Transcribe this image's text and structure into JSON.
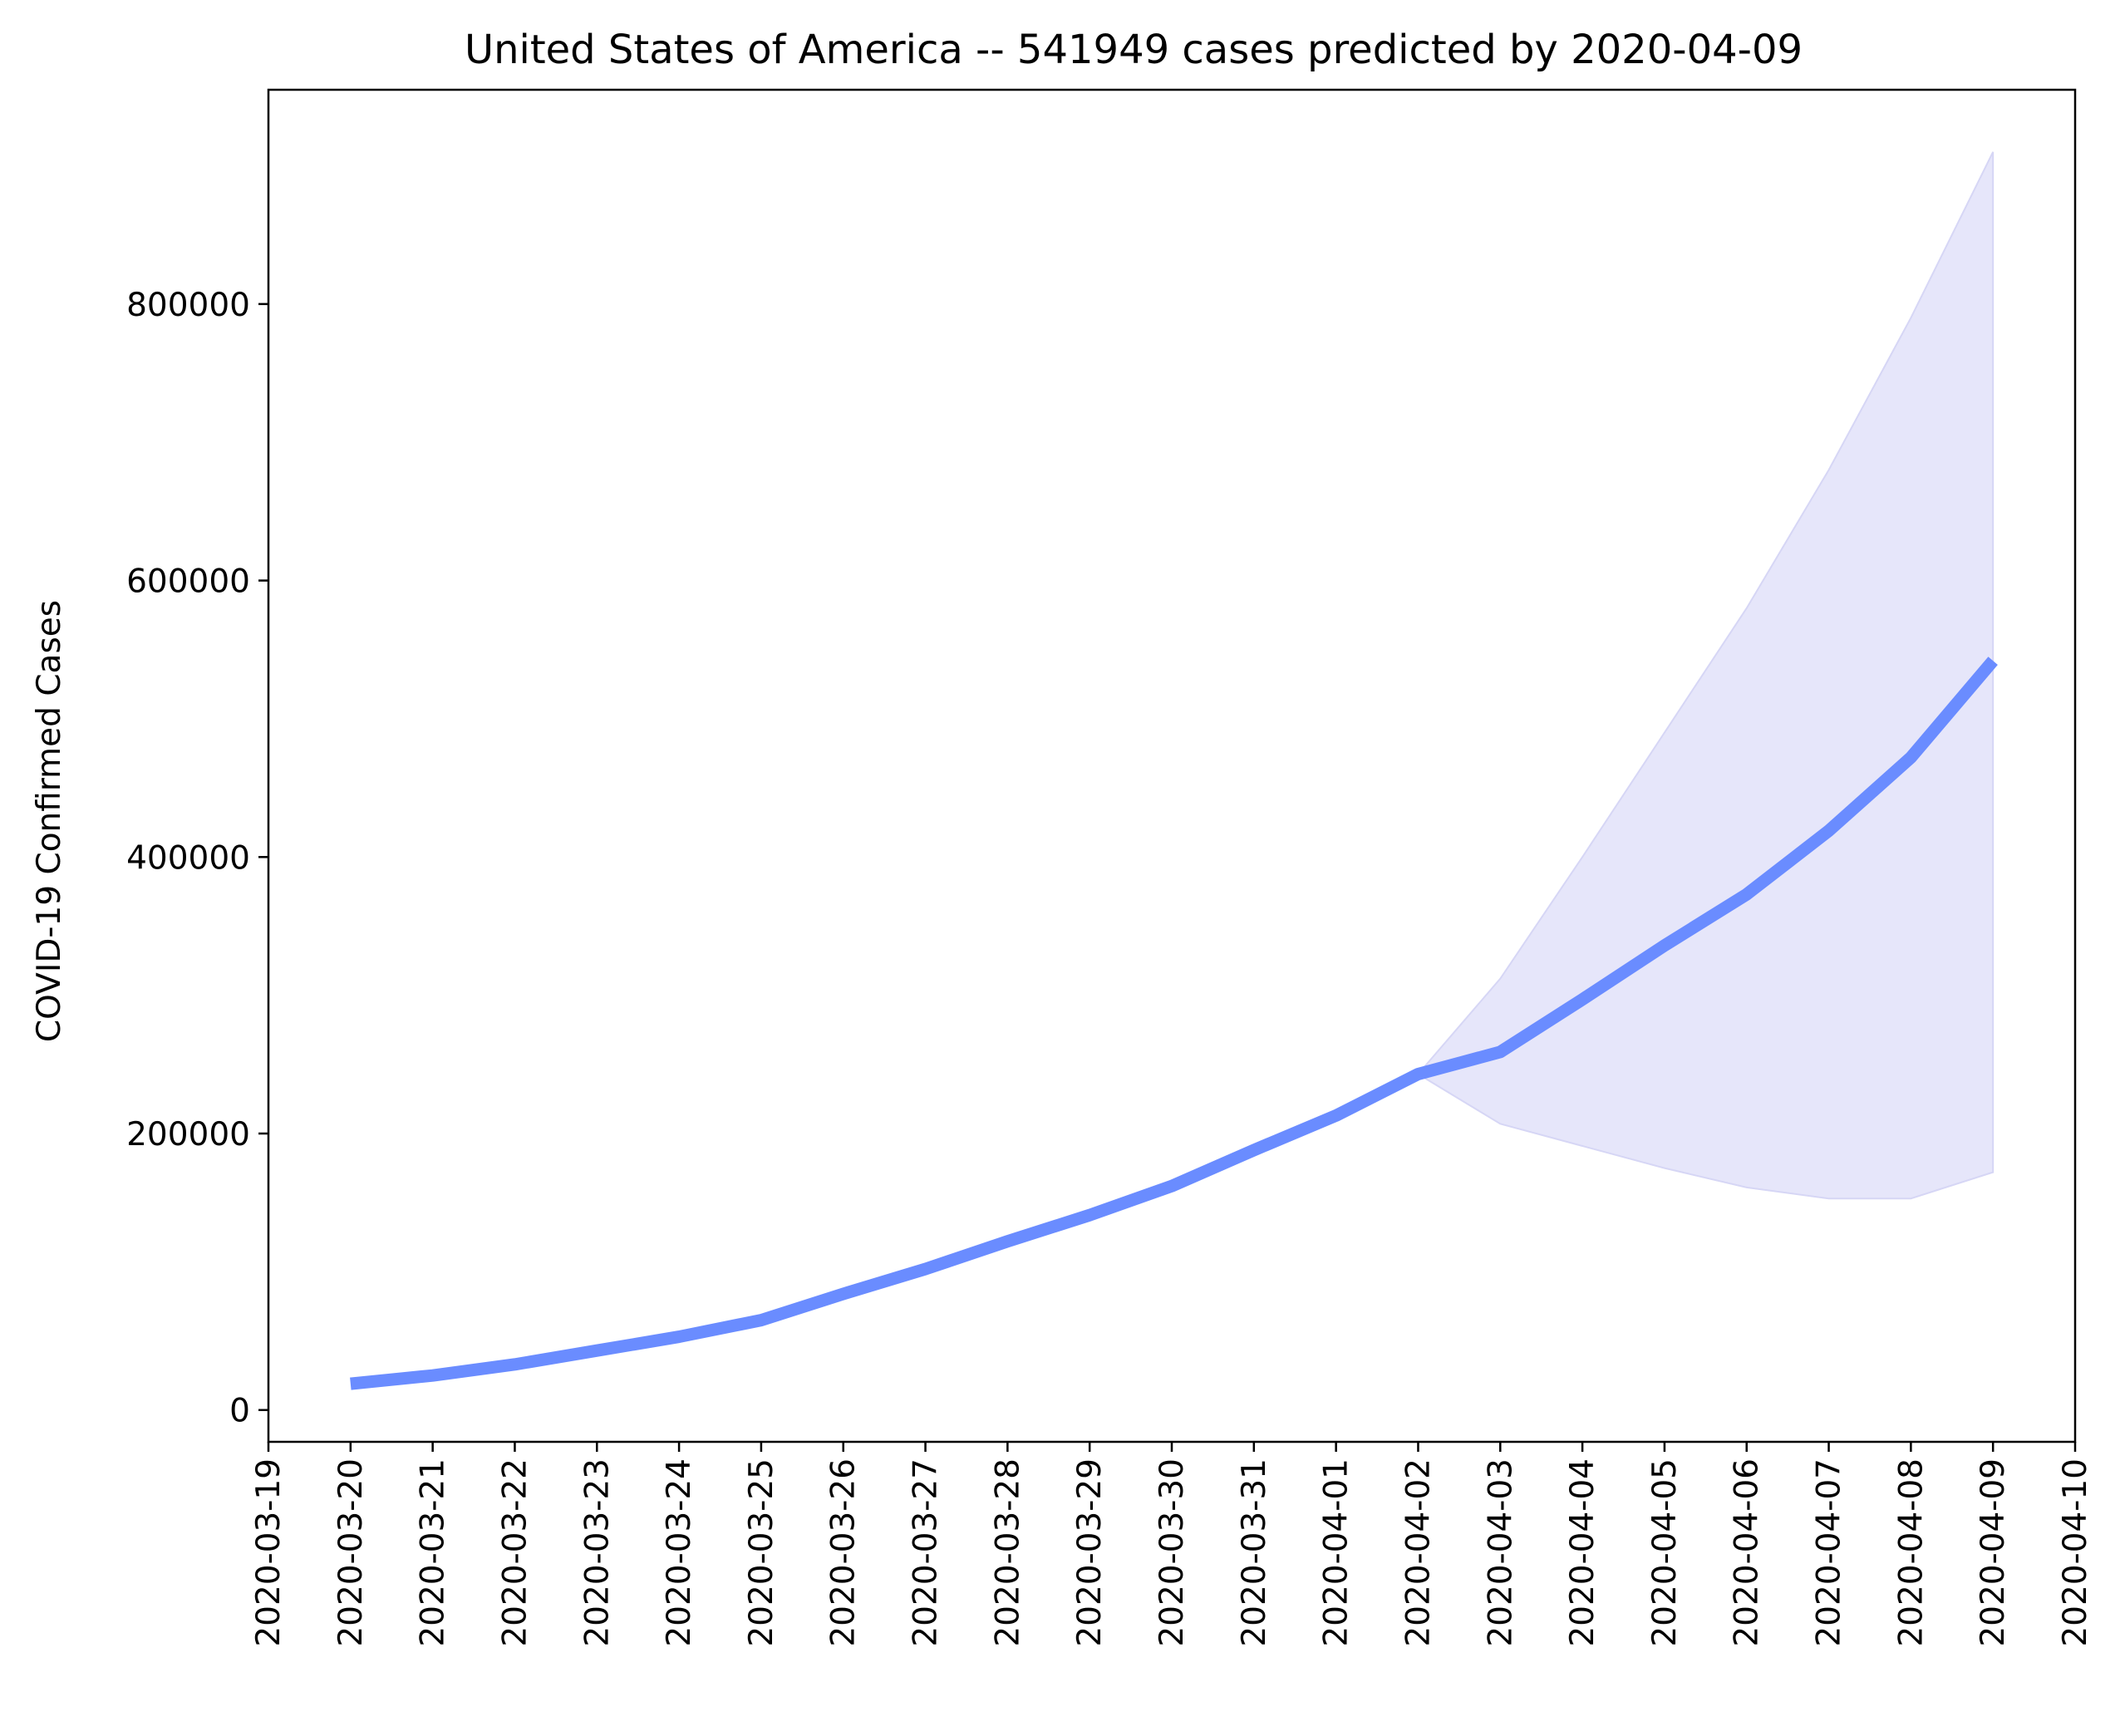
{
  "chart_data": {
    "type": "line",
    "title": "United States of America  --  541949 cases predicted by 2020-04-09",
    "xlabel": "",
    "ylabel": "COVID-19 Confirmed Cases",
    "x_ticks": [
      "2020-03-19",
      "2020-03-20",
      "2020-03-21",
      "2020-03-22",
      "2020-03-23",
      "2020-03-24",
      "2020-03-25",
      "2020-03-26",
      "2020-03-27",
      "2020-03-28",
      "2020-03-29",
      "2020-03-30",
      "2020-03-31",
      "2020-04-01",
      "2020-04-02",
      "2020-04-03",
      "2020-04-04",
      "2020-04-05",
      "2020-04-06",
      "2020-04-07",
      "2020-04-08",
      "2020-04-09",
      "2020-04-10"
    ],
    "y_ticks": [
      0,
      200000,
      400000,
      600000,
      800000
    ],
    "ylim": [
      -23000,
      955000
    ],
    "xlim": [
      "2020-03-19",
      "2020-04-10"
    ],
    "grid": false,
    "series": [
      {
        "color": "#6a8cff",
        "x": [
          "2020-03-20",
          "2020-03-21",
          "2020-03-22",
          "2020-03-23",
          "2020-03-24",
          "2020-03-25",
          "2020-03-26",
          "2020-03-27",
          "2020-03-28",
          "2020-03-29",
          "2020-03-30",
          "2020-03-31",
          "2020-04-01",
          "2020-04-02",
          "2020-04-03",
          "2020-04-04",
          "2020-04-05",
          "2020-04-06",
          "2020-04-07",
          "2020-04-08",
          "2020-04-09"
        ],
        "y": [
          19000,
          25000,
          33000,
          43000,
          53000,
          65000,
          84000,
          102000,
          122000,
          141000,
          162000,
          188000,
          213000,
          243000,
          259000,
          297000,
          336000,
          373000,
          419000,
          472000,
          541949
        ]
      }
    ],
    "confidence_band": {
      "color": "#e6e6fa",
      "edge_color": "#d6d6f5",
      "x": [
        "2020-04-02",
        "2020-04-03",
        "2020-04-04",
        "2020-04-05",
        "2020-04-06",
        "2020-04-07",
        "2020-04-08",
        "2020-04-09"
      ],
      "upper": [
        243000,
        312000,
        400000,
        490000,
        580000,
        680000,
        790000,
        910000
      ],
      "lower": [
        243000,
        207000,
        191000,
        175000,
        161000,
        153000,
        153000,
        172000
      ]
    }
  }
}
